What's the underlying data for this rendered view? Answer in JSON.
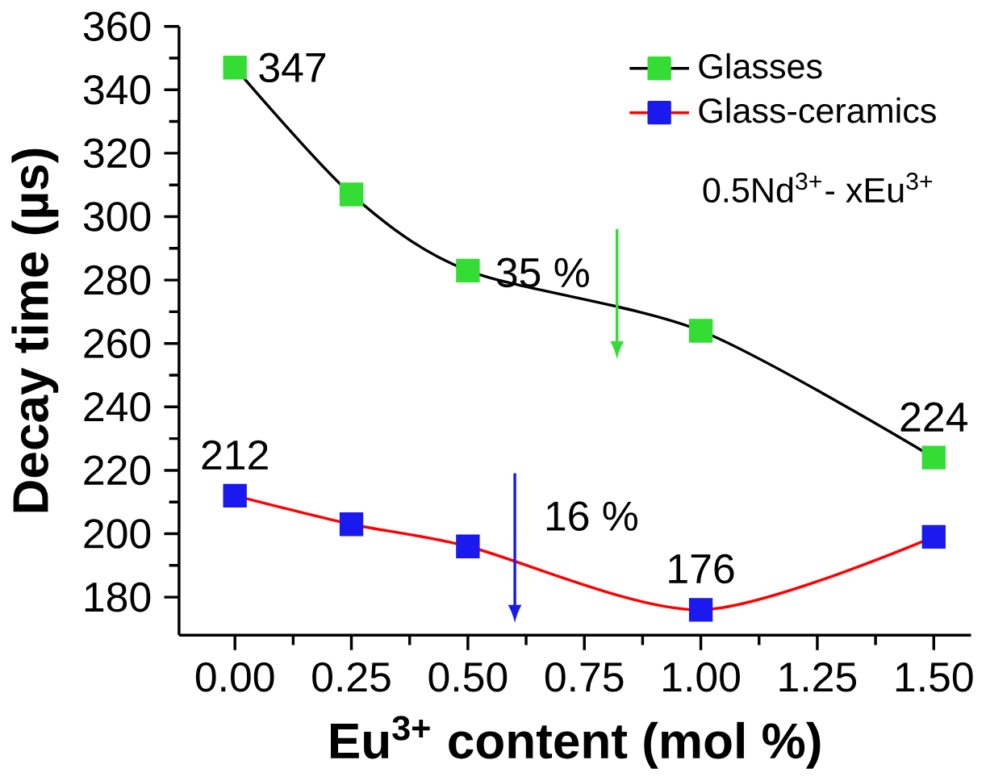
{
  "chart_data": {
    "type": "line",
    "xlabel": "Eu$^{3+}$ content (mol %)",
    "ylabel": "Decay time (µs)",
    "legend_title": "0.5Nd$^{3+}$- xEu$^{3+}$",
    "x": [
      0,
      0.25,
      0.5,
      1.0,
      1.5
    ],
    "series": [
      {
        "name": "Glasses",
        "color": "#000000",
        "colors": [
          "#33dd33",
          "#33dd33",
          "#33dd33",
          "#33dd33",
          "#33dd33"
        ],
        "values": [
          347,
          307,
          283,
          264,
          224
        ],
        "value_labels": [
          "347",
          null,
          null,
          null,
          "224"
        ]
      },
      {
        "name": "Glass-ceramics",
        "color": "#ff0000",
        "colors": [
          "#1a1aee",
          "#1a1aee",
          "#1a1aee",
          "#1a1aee",
          "#1a1aee"
        ],
        "values": [
          212,
          203,
          196,
          176,
          199
        ],
        "value_labels": [
          "212",
          null,
          null,
          "176",
          null
        ]
      }
    ],
    "annotations": [
      "35 %",
      "16 %"
    ],
    "xlim": [
      -0.12,
      1.58
    ],
    "ylim": [
      168,
      360
    ],
    "xticks": [
      {
        "value": 0,
        "label": "0.00"
      },
      {
        "value": 0.25,
        "label": "0.25"
      },
      {
        "value": 0.5,
        "label": "0.50"
      },
      {
        "value": 0.75,
        "label": "0.75"
      },
      {
        "value": 1.0,
        "label": "1.00"
      },
      {
        "value": 1.25,
        "label": "1.25"
      },
      {
        "value": 1.5,
        "label": "1.50"
      }
    ],
    "yticks": [
      180,
      200,
      220,
      240,
      260,
      280,
      300,
      320,
      340,
      360
    ],
    "marker": "square",
    "legend": "top right",
    "grid": false
  }
}
